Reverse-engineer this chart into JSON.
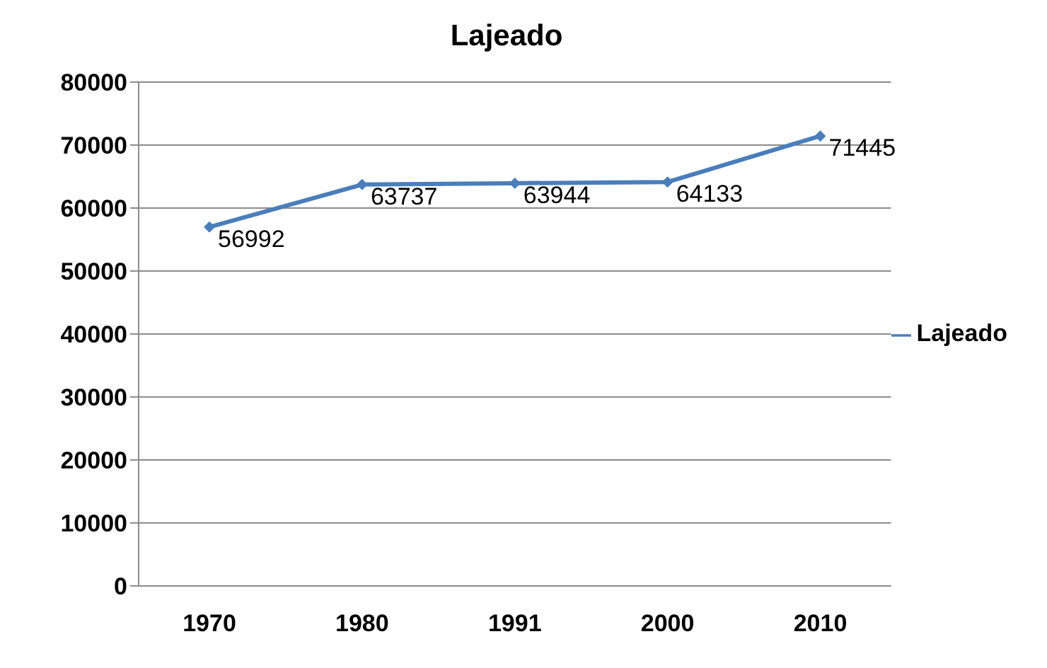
{
  "chart_data": {
    "type": "line",
    "title": "Lajeado",
    "categories": [
      "1970",
      "1980",
      "1991",
      "2000",
      "2010"
    ],
    "series": [
      {
        "name": "Lajeado",
        "color": "#4a7ebb",
        "values": [
          56992,
          63737,
          63944,
          64133,
          71445
        ]
      }
    ],
    "ylim": [
      0,
      80000
    ],
    "yticks": [
      0,
      10000,
      20000,
      30000,
      40000,
      50000,
      60000,
      70000,
      80000
    ],
    "grid": "y",
    "legend": "right",
    "marker": "diamond",
    "data_labels": true
  }
}
